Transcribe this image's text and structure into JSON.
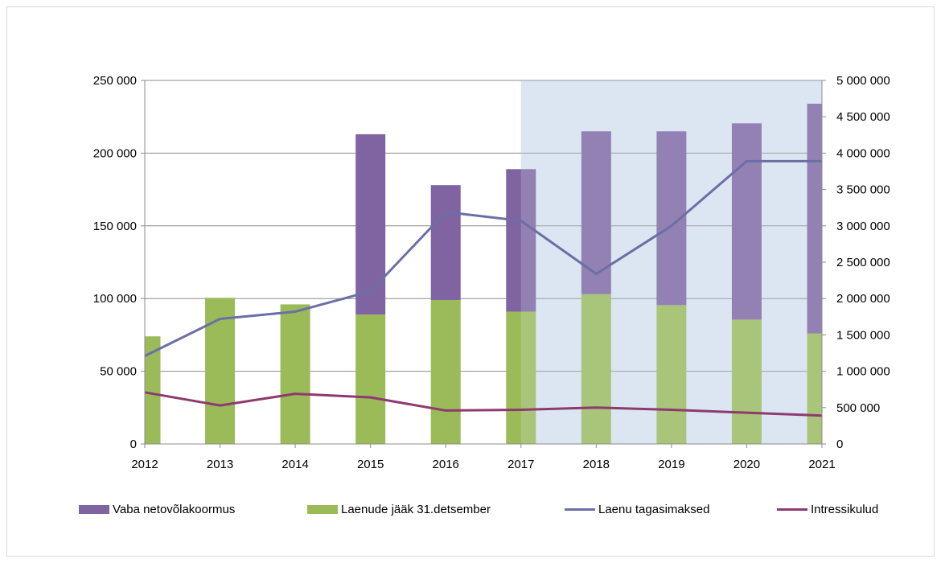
{
  "chart_data": {
    "type": "bar",
    "categories": [
      "2012",
      "2013",
      "2014",
      "2015",
      "2016",
      "2017",
      "2018",
      "2019",
      "2020",
      "2021"
    ],
    "left_axis": {
      "min": 0,
      "max": 250000,
      "ticks": [
        "0",
        "50 000",
        "100 000",
        "150 000",
        "200 000",
        "250 000"
      ]
    },
    "right_axis": {
      "min": 0,
      "max": 5000000,
      "ticks": [
        "0",
        "500 000",
        "1 000 000",
        "1 500 000",
        "2 000 000",
        "2 500 000",
        "3 000 000",
        "3 500 000",
        "4 000 000",
        "4 500 000",
        "5 000 000"
      ]
    },
    "forecast_shading_from": "2017",
    "grid": "horizontal",
    "legend_position": "bottom",
    "series": [
      {
        "name": "Vaba netovõlakoormus",
        "kind": "stacked-bar",
        "axis": "left",
        "color": "#8064a2",
        "values": [
          0,
          0,
          0,
          124000,
          79000,
          98000,
          112000,
          119500,
          135000,
          158000
        ]
      },
      {
        "name": "Laenude jääk 31.detsember",
        "kind": "stacked-bar",
        "axis": "left",
        "color": "#9bbb59",
        "values": [
          74000,
          100500,
          96000,
          89000,
          99000,
          91000,
          103000,
          95500,
          85500,
          76000
        ]
      },
      {
        "name": "Laenu tagasimaksed",
        "kind": "line",
        "axis": "right",
        "color": "#6b6fa6",
        "values": [
          1210000,
          1720000,
          1820000,
          2100000,
          3190000,
          3070000,
          2340000,
          3000000,
          3890000,
          3890000
        ]
      },
      {
        "name": "Intressikulud",
        "kind": "line",
        "axis": "right",
        "color": "#8e3a6e",
        "values": [
          710000,
          530000,
          690000,
          640000,
          460000,
          470000,
          500000,
          470000,
          430000,
          390000
        ]
      }
    ]
  }
}
